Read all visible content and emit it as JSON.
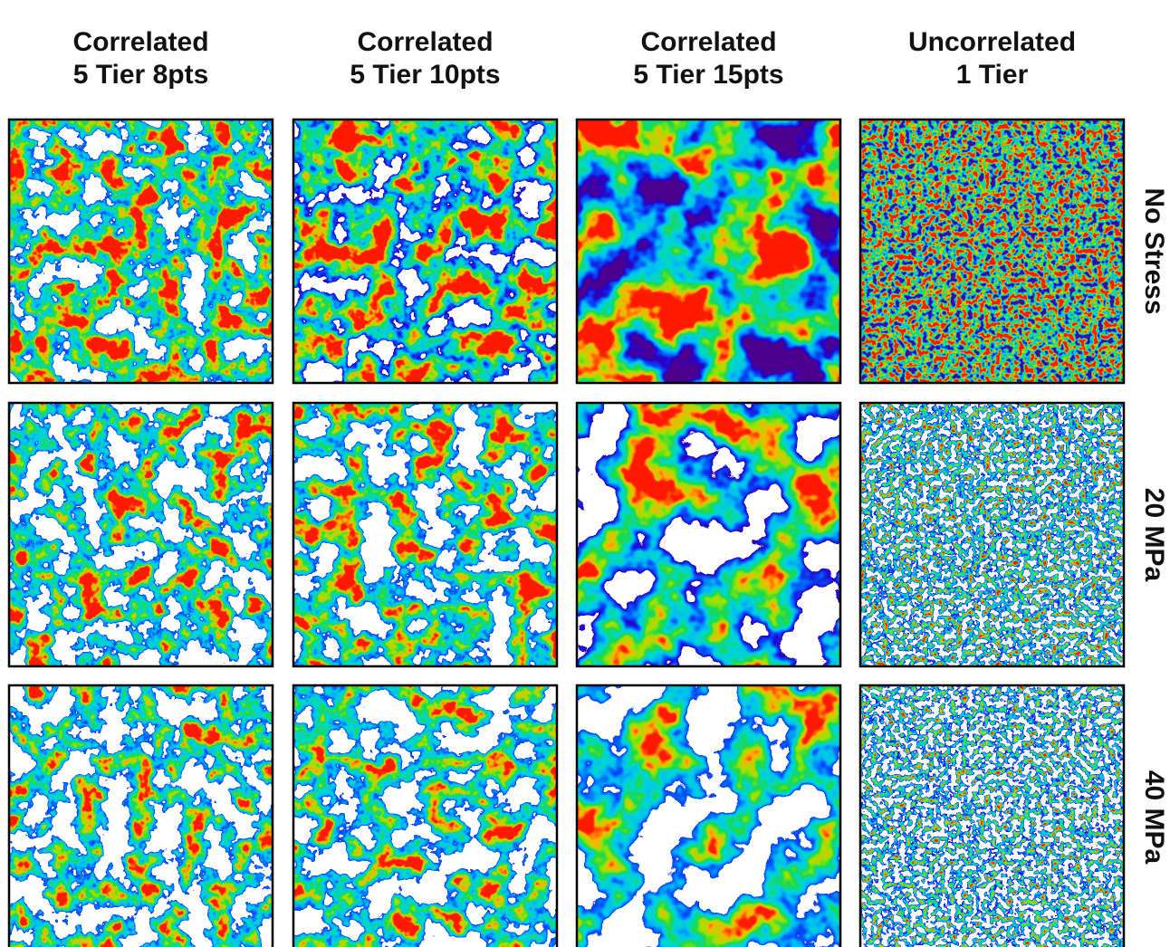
{
  "columns": [
    {
      "line1": "Correlated",
      "line2": "5 Tier 8pts"
    },
    {
      "line1": "Correlated",
      "line2": "5 Tier 10pts"
    },
    {
      "line1": "Correlated",
      "line2": "5 Tier 15pts"
    },
    {
      "line1": "Uncorrelated",
      "line2": "1 Tier"
    }
  ],
  "rows": [
    "No Stress",
    "20 MPa",
    "40 MPa"
  ]
}
